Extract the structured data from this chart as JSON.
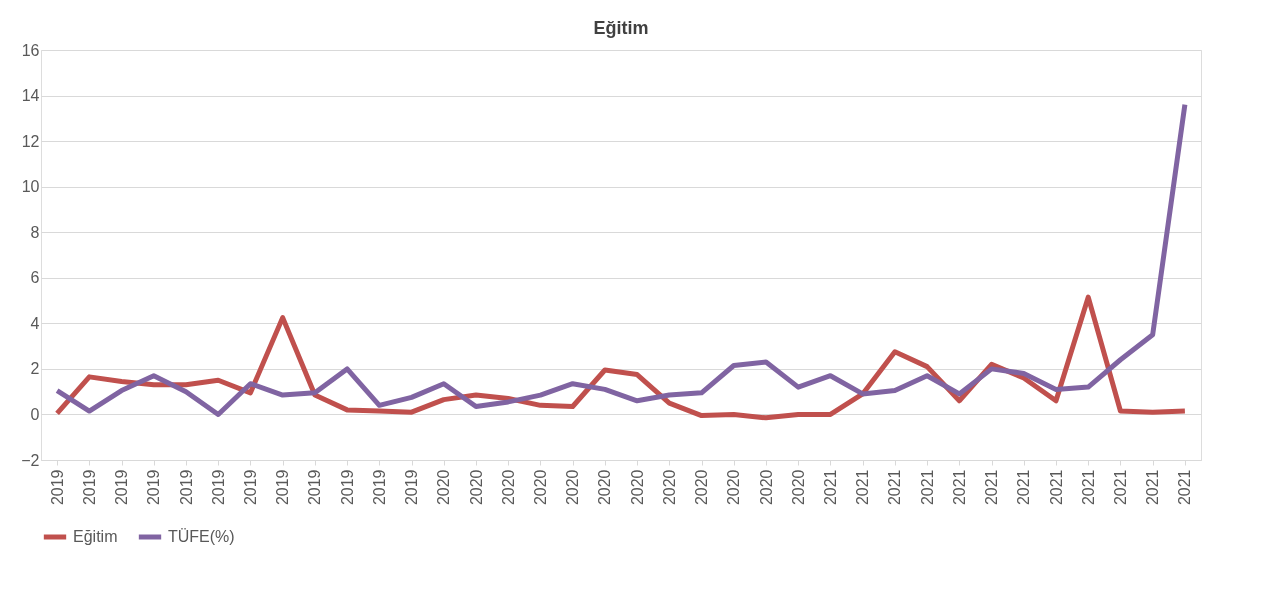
{
  "chart_data": {
    "type": "line",
    "title": "Eğitim",
    "categories": [
      "2019",
      "2019",
      "2019",
      "2019",
      "2019",
      "2019",
      "2019",
      "2019",
      "2019",
      "2019",
      "2019",
      "2019",
      "2020",
      "2020",
      "2020",
      "2020",
      "2020",
      "2020",
      "2020",
      "2020",
      "2020",
      "2020",
      "2020",
      "2020",
      "2021",
      "2021",
      "2021",
      "2021",
      "2021",
      "2021",
      "2021",
      "2021",
      "2021",
      "2021",
      "2021",
      "2021"
    ],
    "series": [
      {
        "name": "Eğitim",
        "color": "#c0504d",
        "values": [
          0.05,
          1.65,
          1.45,
          1.3,
          1.3,
          1.5,
          0.95,
          4.25,
          0.85,
          0.2,
          0.15,
          0.1,
          0.65,
          0.85,
          0.7,
          0.4,
          0.35,
          1.95,
          1.75,
          0.5,
          -0.05,
          0.0,
          -0.15,
          0.0,
          0.0,
          0.9,
          2.75,
          2.1,
          0.6,
          2.2,
          1.6,
          0.6,
          5.15,
          0.15,
          0.1,
          0.15
        ]
      },
      {
        "name": "TÜFE(%)",
        "color": "#8064a2",
        "values": [
          1.05,
          0.15,
          1.05,
          1.7,
          1.0,
          0.0,
          1.35,
          0.85,
          0.95,
          2.0,
          0.4,
          0.75,
          1.35,
          0.35,
          0.55,
          0.85,
          1.35,
          1.1,
          0.6,
          0.85,
          0.95,
          2.15,
          2.3,
          1.2,
          1.7,
          0.9,
          1.05,
          1.7,
          0.9,
          2.0,
          1.8,
          1.1,
          1.2,
          2.4,
          3.5,
          13.6
        ]
      }
    ],
    "ylim": [
      -2,
      16
    ],
    "yticks": [
      -2,
      0,
      2,
      4,
      6,
      8,
      10,
      12,
      14,
      16
    ],
    "grid": "y",
    "legend": "bottom",
    "marker": "none",
    "line_style": "solid"
  }
}
